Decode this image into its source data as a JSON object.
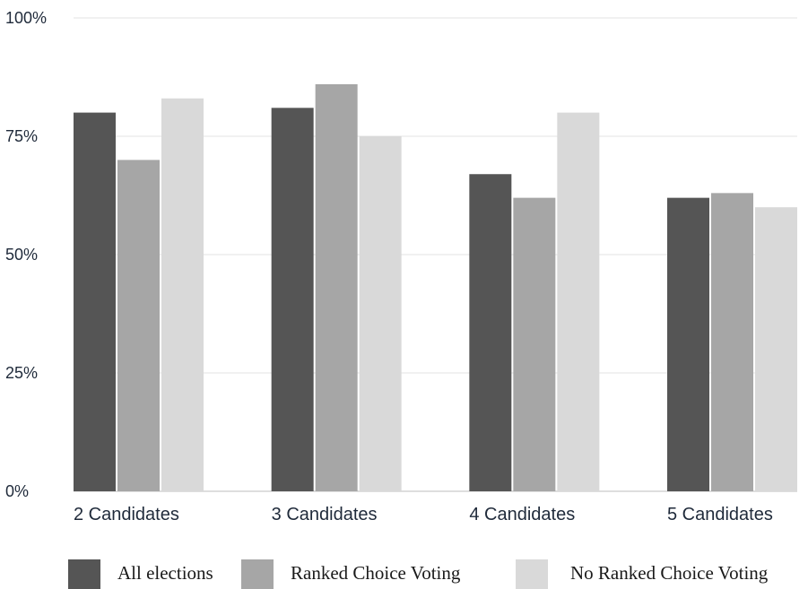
{
  "chart_data": {
    "type": "bar",
    "title": "",
    "xlabel": "",
    "ylabel": "",
    "ylim": [
      0,
      100
    ],
    "yticks": [
      {
        "value": 0,
        "label": "0%"
      },
      {
        "value": 25,
        "label": "25%"
      },
      {
        "value": 50,
        "label": "50%"
      },
      {
        "value": 75,
        "label": "75%"
      },
      {
        "value": 100,
        "label": "100%"
      }
    ],
    "grid": true,
    "legend_position": "bottom",
    "categories": [
      "2 Candidates",
      "3 Candidates",
      "4 Candidates",
      "5 Candidates"
    ],
    "series": [
      {
        "name": "All elections",
        "color": "#555555",
        "values": [
          80,
          81,
          67,
          62
        ]
      },
      {
        "name": "Ranked Choice Voting",
        "color": "#a6a6a6",
        "values": [
          70,
          86,
          62,
          63
        ]
      },
      {
        "name": "No Ranked Choice Voting",
        "color": "#d9d9d9",
        "values": [
          83,
          75,
          80,
          60
        ]
      }
    ]
  }
}
